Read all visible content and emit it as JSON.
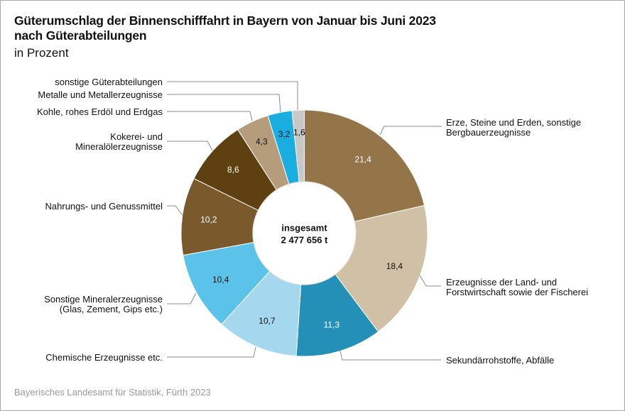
{
  "title_line1": "Güterumschlag der Binnenschifffahrt in Bayern von Januar bis Juni 2023",
  "title_line2": "nach Güterabteilungen",
  "subtitle": "in Prozent",
  "source": "Bayerisches Landesamt für Statistik, Fürth 2023",
  "center_label": {
    "line1": "insgesamt",
    "line2": "2 477 656 t"
  },
  "chart_data": {
    "type": "pie",
    "variant": "donut",
    "title": "Güterumschlag der Binnenschifffahrt in Bayern von Januar bis Juni 2023 nach Güterabteilungen",
    "unit": "Prozent",
    "total": "2 477 656 t",
    "start": "top",
    "direction": "clockwise",
    "slices": [
      {
        "label": [
          "Erze, Steine und Erden, sonstige",
          "Bergbauerzeugnisse"
        ],
        "value": 21.4,
        "value_text": "21,4",
        "color": "#947449",
        "text_color": "#ffffff"
      },
      {
        "label": [
          "Erzeugnisse der Land- und",
          "Forstwirtschaft sowie der Fischerei"
        ],
        "value": 18.4,
        "value_text": "18,4",
        "color": "#cfc0a6",
        "text_color": "#111111"
      },
      {
        "label": [
          "Sekundärrohstoffe, Abfälle"
        ],
        "value": 11.3,
        "value_text": "11,3",
        "color": "#2490b7",
        "text_color": "#ffffff"
      },
      {
        "label": [
          "Chemische Erzeugnisse etc."
        ],
        "value": 10.7,
        "value_text": "10,7",
        "color": "#a5d8ef",
        "text_color": "#111111"
      },
      {
        "label": [
          "Sonstige Mineralerzeugnisse",
          "(Glas, Zement, Gips etc.)"
        ],
        "value": 10.4,
        "value_text": "10,4",
        "color": "#5bc3e9",
        "text_color": "#111111"
      },
      {
        "label": [
          "Nahrungs- und Genussmittel"
        ],
        "value": 10.2,
        "value_text": "10,2",
        "color": "#7a5a2c",
        "text_color": "#ffffff"
      },
      {
        "label": [
          "Kokerei- und",
          "Mineralölerzeugnisse"
        ],
        "value": 8.6,
        "value_text": "8,6",
        "color": "#5f4010",
        "text_color": "#ffffff"
      },
      {
        "label": [
          "Kohle, rohes Erdöl und Erdgas"
        ],
        "value": 4.3,
        "value_text": "4,3",
        "color": "#b59d7c",
        "text_color": "#111111"
      },
      {
        "label": [
          "Metalle und Metallerzeugnisse"
        ],
        "value": 3.2,
        "value_text": "3,2",
        "color": "#1aade0",
        "text_color": "#111111"
      },
      {
        "label": [
          "sonstige Güterabteilungen"
        ],
        "value": 1.6,
        "value_text": "1,6",
        "color": "#c8c8c8",
        "text_color": "#111111"
      }
    ]
  }
}
